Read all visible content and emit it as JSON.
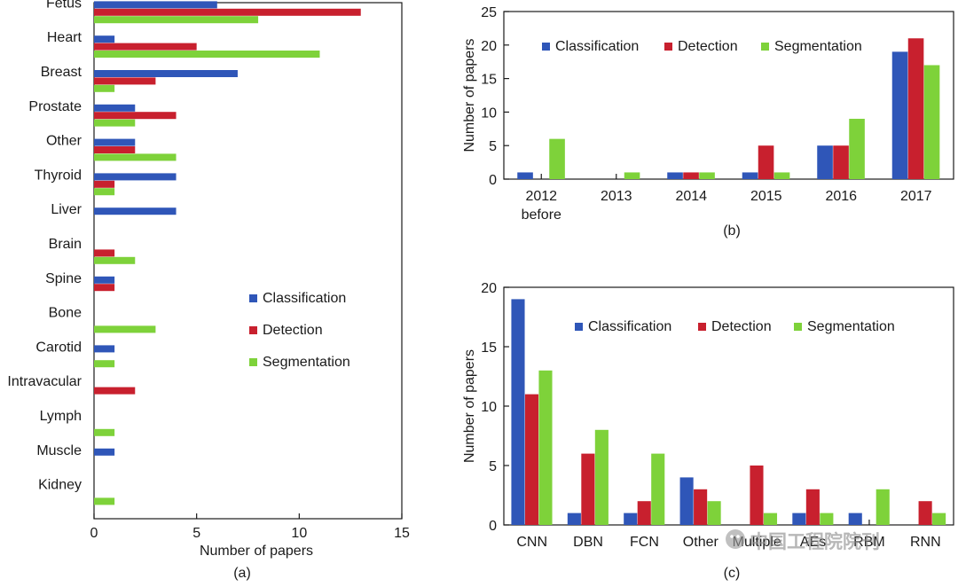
{
  "colors": {
    "classification": "#2f56b8",
    "detection": "#c8202e",
    "segmentation": "#7ed23a",
    "axis": "#1a1a1a"
  },
  "watermark": {
    "text": "中国工程院院刊"
  },
  "chart_data": [
    {
      "id": "a",
      "type": "bar",
      "orientation": "horizontal",
      "caption": "(a)",
      "xlabel": "Number of papers",
      "ylabel": "",
      "xlim": [
        0,
        15
      ],
      "xticks": [
        0,
        5,
        10,
        15
      ],
      "legend": "middle-right",
      "categories": [
        "Fetus",
        "Heart",
        "Breast",
        "Prostate",
        "Other",
        "Thyroid",
        "Liver",
        "Brain",
        "Spine",
        "Bone",
        "Carotid",
        "Intravacular",
        "Lymph",
        "Muscle",
        "Kidney"
      ],
      "series": [
        {
          "name": "Classification",
          "key": "classification",
          "values": [
            6,
            1,
            7,
            2,
            2,
            4,
            4,
            0,
            1,
            0,
            1,
            0,
            0,
            1,
            0
          ]
        },
        {
          "name": "Detection",
          "key": "detection",
          "values": [
            13,
            5,
            3,
            4,
            2,
            1,
            0,
            1,
            1,
            0,
            0,
            2,
            0,
            0,
            0
          ]
        },
        {
          "name": "Segmentation",
          "key": "segmentation",
          "values": [
            8,
            11,
            1,
            2,
            4,
            1,
            0,
            2,
            0,
            3,
            1,
            0,
            1,
            0,
            1
          ]
        }
      ]
    },
    {
      "id": "b",
      "type": "bar",
      "caption": "(b)",
      "xlabel": "",
      "ylabel": "Number of papers",
      "ylim": [
        0,
        25
      ],
      "yticks": [
        0,
        5,
        10,
        15,
        20,
        25
      ],
      "legend": "top",
      "categories": [
        "2012",
        "2013",
        "2014",
        "2015",
        "2016",
        "2017"
      ],
      "category_sublabels": [
        "before",
        "",
        "",
        "",
        "",
        ""
      ],
      "series": [
        {
          "name": "Classification",
          "key": "classification",
          "values": [
            1,
            0,
            1,
            1,
            5,
            19
          ]
        },
        {
          "name": "Detection",
          "key": "detection",
          "values": [
            0,
            0,
            1,
            5,
            5,
            21
          ]
        },
        {
          "name": "Segmentation",
          "key": "segmentation",
          "values": [
            6,
            1,
            1,
            1,
            9,
            17
          ]
        }
      ]
    },
    {
      "id": "c",
      "type": "bar",
      "caption": "(c)",
      "xlabel": "",
      "ylabel": "Number of papers",
      "ylim": [
        0,
        20
      ],
      "yticks": [
        0,
        5,
        10,
        15,
        20
      ],
      "legend": "top",
      "categories": [
        "CNN",
        "DBN",
        "FCN",
        "Other",
        "Multiple",
        "AEs",
        "RBM",
        "RNN"
      ],
      "series": [
        {
          "name": "Classification",
          "key": "classification",
          "values": [
            19,
            1,
            1,
            4,
            0,
            1,
            1,
            0
          ]
        },
        {
          "name": "Detection",
          "key": "detection",
          "values": [
            11,
            6,
            2,
            3,
            5,
            3,
            0,
            2
          ]
        },
        {
          "name": "Segmentation",
          "key": "segmentation",
          "values": [
            13,
            8,
            6,
            2,
            1,
            1,
            3,
            1
          ]
        }
      ]
    }
  ]
}
